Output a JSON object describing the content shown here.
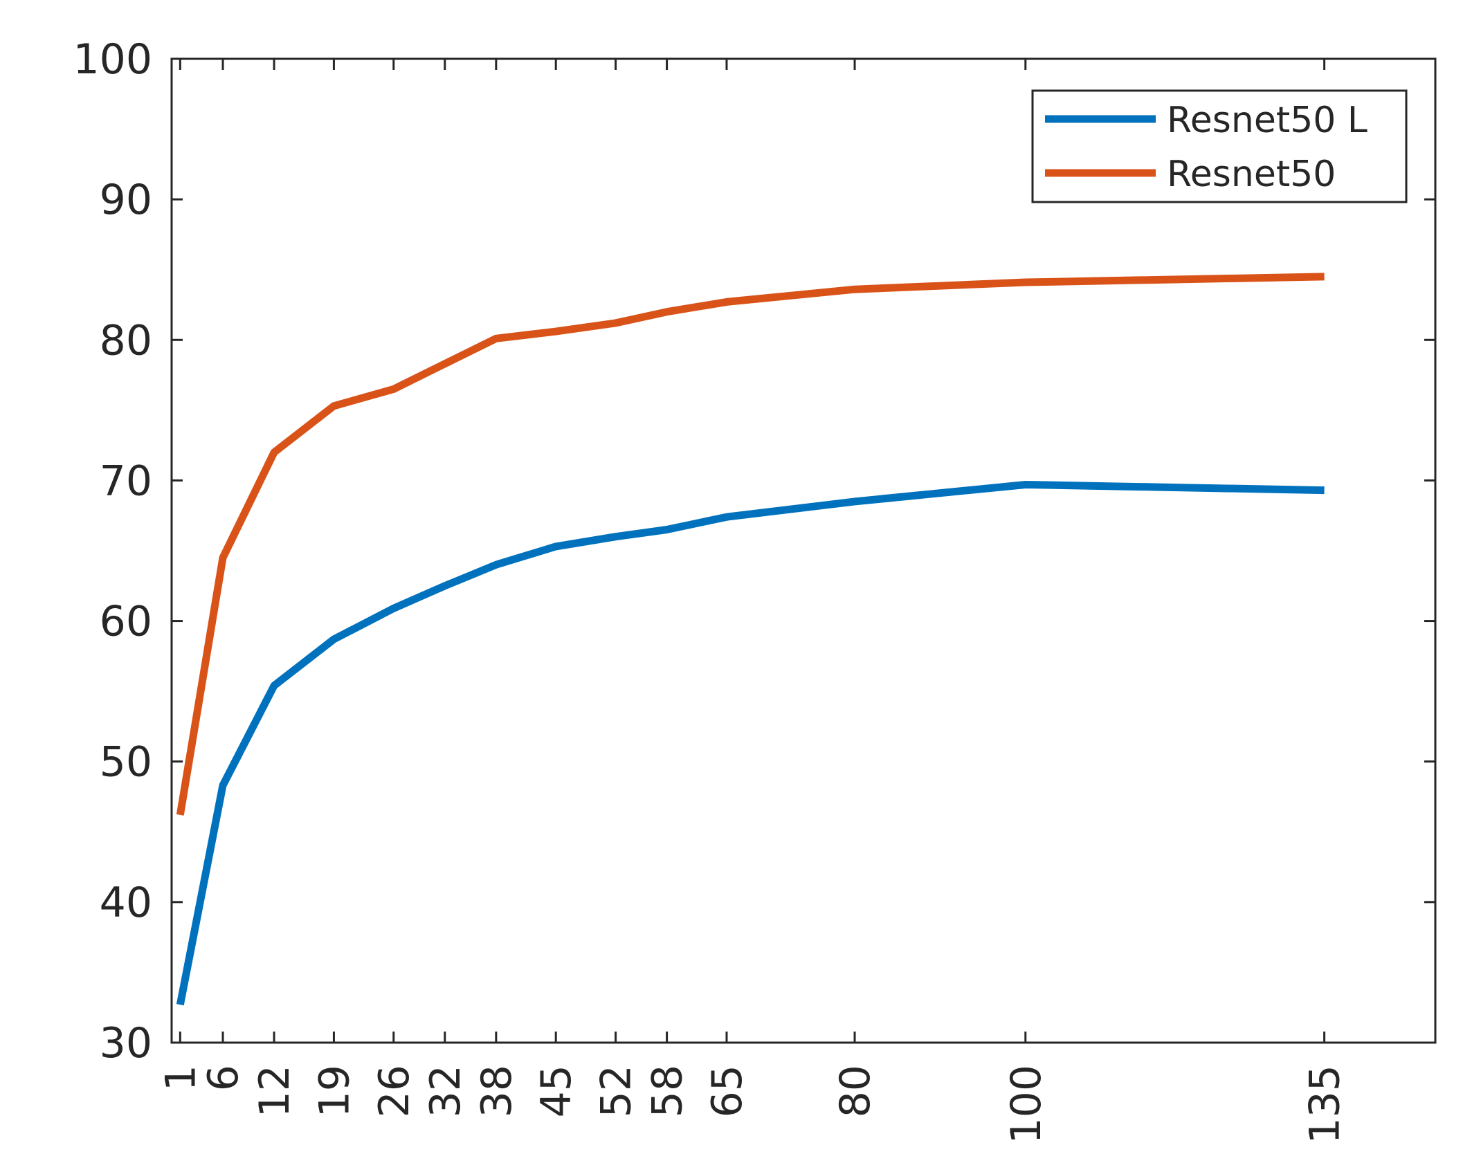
{
  "chart_data": {
    "type": "line",
    "title": "",
    "xlabel": "",
    "ylabel": "",
    "x": [
      1,
      6,
      12,
      19,
      26,
      32,
      38,
      45,
      52,
      58,
      65,
      80,
      100,
      135
    ],
    "x_tick_labels": [
      "1",
      "6",
      "12",
      "19",
      "26",
      "32",
      "38",
      "45",
      "52",
      "58",
      "65",
      "80",
      "100",
      "135"
    ],
    "ylim": [
      30,
      100
    ],
    "y_ticks": [
      30,
      40,
      50,
      60,
      70,
      80,
      90,
      100
    ],
    "y_tick_labels": [
      "30",
      "40",
      "50",
      "60",
      "70",
      "80",
      "90",
      "100"
    ],
    "grid": false,
    "legend_position": "top-right",
    "series": [
      {
        "name": "Resnet50 L",
        "color": "#0072BD",
        "values": [
          32.7,
          48.3,
          55.4,
          58.7,
          60.9,
          62.5,
          64.0,
          65.3,
          66.0,
          66.5,
          67.4,
          68.5,
          69.7,
          69.3
        ]
      },
      {
        "name": "Resnet50",
        "color": "#D95319",
        "values": [
          46.2,
          64.5,
          72.0,
          75.3,
          76.5,
          78.3,
          80.1,
          80.6,
          81.2,
          82.0,
          82.7,
          83.6,
          84.1,
          84.5
        ]
      }
    ]
  }
}
